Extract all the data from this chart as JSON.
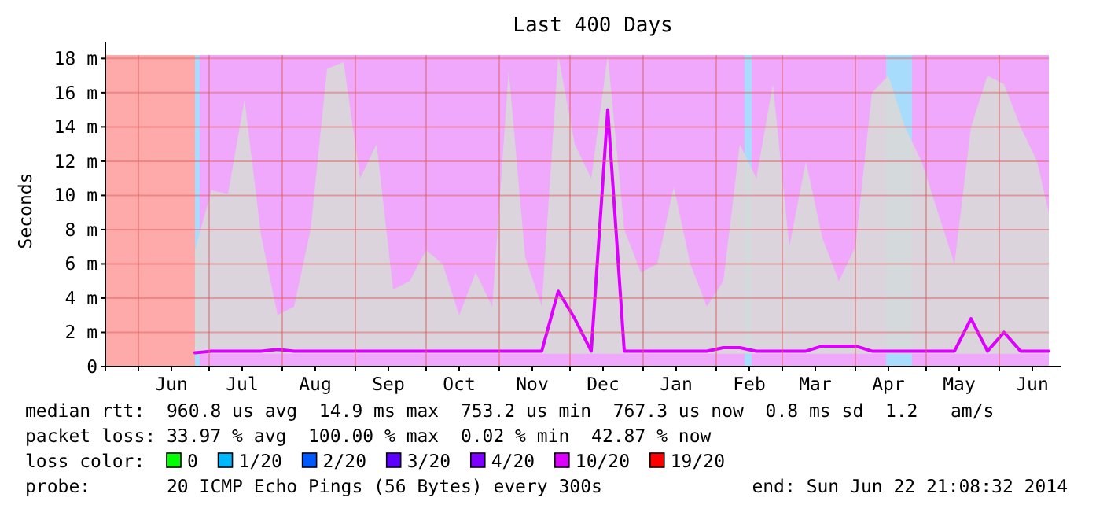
{
  "chart_data": {
    "type": "line",
    "title": "Last 400 Days",
    "ylabel": "Seconds",
    "legend": "bottom",
    "legend_title": "loss color:",
    "grid": true,
    "xlim": [
      "2013-05-18",
      "2014-06-22"
    ],
    "xticks": [
      {
        "value": "2013-06-01",
        "label": null
      },
      {
        "value": "2013-06-15",
        "label": "Jun"
      },
      {
        "value": "2013-07-01",
        "label": null
      },
      {
        "value": "2013-07-15",
        "label": "Jul"
      },
      {
        "value": "2013-08-01",
        "label": null
      },
      {
        "value": "2013-08-15",
        "label": "Aug"
      },
      {
        "value": "2013-09-01",
        "label": null
      },
      {
        "value": "2013-09-15",
        "label": "Sep"
      },
      {
        "value": "2013-10-01",
        "label": null
      },
      {
        "value": "2013-10-15",
        "label": "Oct"
      },
      {
        "value": "2013-11-01",
        "label": null
      },
      {
        "value": "2013-11-15",
        "label": "Nov"
      },
      {
        "value": "2013-12-01",
        "label": null
      },
      {
        "value": "2013-12-15",
        "label": "Dec"
      },
      {
        "value": "2014-01-01",
        "label": null
      },
      {
        "value": "2014-01-15",
        "label": "Jan"
      },
      {
        "value": "2014-02-01",
        "label": null
      },
      {
        "value": "2014-02-15",
        "label": "Feb"
      },
      {
        "value": "2014-03-01",
        "label": null
      },
      {
        "value": "2014-03-15",
        "label": "Mar"
      },
      {
        "value": "2014-04-01",
        "label": null
      },
      {
        "value": "2014-04-15",
        "label": "Apr"
      },
      {
        "value": "2014-05-01",
        "label": null
      },
      {
        "value": "2014-05-15",
        "label": "May"
      },
      {
        "value": "2014-06-01",
        "label": null
      },
      {
        "value": "2014-06-15",
        "label": "Jun"
      }
    ],
    "ylim": [
      0,
      18.2
    ],
    "yticks": [
      0,
      {
        "value": 2,
        "label": "2 m"
      },
      {
        "value": 4,
        "label": "4 m"
      },
      {
        "value": 6,
        "label": "6 m"
      },
      {
        "value": 8,
        "label": "8 m"
      },
      {
        "value": 10,
        "label": "10 m"
      },
      {
        "value": 12,
        "label": "12 m"
      },
      {
        "value": 14,
        "label": "14 m"
      },
      {
        "value": 16,
        "label": "16 m"
      },
      {
        "value": 18,
        "label": "18 m"
      }
    ],
    "bands": [
      {
        "axis": "x",
        "from": "2013-05-18",
        "to": "2013-06-25",
        "color": "#ffaaaa"
      },
      {
        "axis": "x",
        "from": "2013-06-25",
        "to": "2014-06-22",
        "color": "#f0a8fc"
      },
      {
        "axis": "x",
        "from": "2013-06-25",
        "to": "2013-06-27",
        "color": "#a8dcfc"
      },
      {
        "axis": "x",
        "from": "2014-02-13",
        "to": "2014-02-16",
        "color": "#a8dcfc"
      },
      {
        "axis": "x",
        "from": "2014-04-14",
        "to": "2014-04-25",
        "color": "#a8dcfc"
      }
    ],
    "x": [
      "2013-06-25",
      "2013-07-02",
      "2013-07-09",
      "2013-07-16",
      "2013-07-23",
      "2013-07-30",
      "2013-08-06",
      "2013-08-13",
      "2013-08-20",
      "2013-08-27",
      "2013-09-03",
      "2013-09-10",
      "2013-09-17",
      "2013-09-24",
      "2013-10-01",
      "2013-10-08",
      "2013-10-15",
      "2013-10-22",
      "2013-10-29",
      "2013-11-05",
      "2013-11-12",
      "2013-11-19",
      "2013-11-26",
      "2013-12-03",
      "2013-12-10",
      "2013-12-17",
      "2013-12-24",
      "2013-12-31",
      "2014-01-07",
      "2014-01-14",
      "2014-01-21",
      "2014-01-28",
      "2014-02-04",
      "2014-02-11",
      "2014-02-18",
      "2014-02-25",
      "2014-03-04",
      "2014-03-11",
      "2014-03-18",
      "2014-03-25",
      "2014-04-01",
      "2014-04-08",
      "2014-04-15",
      "2014-04-22",
      "2014-04-29",
      "2014-05-06",
      "2014-05-13",
      "2014-05-20",
      "2014-05-27",
      "2014-06-03",
      "2014-06-10",
      "2014-06-17",
      "2014-06-22"
    ],
    "series": [
      {
        "name": "0",
        "color": "#00ff00",
        "values": [
          null,
          null,
          null,
          null,
          null,
          null,
          null,
          null,
          null,
          null,
          null,
          null,
          null,
          null,
          null,
          null,
          null,
          null,
          null,
          null,
          null,
          null,
          null,
          null,
          null,
          null,
          null,
          null,
          null,
          null,
          null,
          null,
          null,
          null,
          null,
          null,
          null,
          null,
          null,
          null,
          null,
          null,
          null,
          null,
          null,
          null,
          null,
          null,
          null,
          null,
          null,
          null,
          null
        ]
      },
      {
        "name": "1/20",
        "color": "#00b8ff",
        "values": [
          null,
          null,
          null,
          null,
          null,
          null,
          null,
          null,
          null,
          null,
          null,
          null,
          null,
          null,
          null,
          null,
          null,
          null,
          null,
          null,
          null,
          null,
          null,
          null,
          null,
          null,
          null,
          null,
          null,
          null,
          null,
          null,
          null,
          null,
          null,
          null,
          null,
          null,
          null,
          null,
          null,
          null,
          null,
          null,
          null,
          null,
          null,
          null,
          null,
          null,
          null,
          null,
          null
        ]
      },
      {
        "name": "2/20",
        "color": "#0059ff",
        "values": [
          null,
          null,
          null,
          null,
          null,
          null,
          null,
          null,
          null,
          null,
          null,
          null,
          null,
          null,
          null,
          null,
          null,
          null,
          null,
          null,
          null,
          null,
          null,
          null,
          null,
          null,
          null,
          null,
          null,
          null,
          null,
          null,
          null,
          null,
          null,
          null,
          null,
          null,
          null,
          null,
          null,
          null,
          null,
          null,
          null,
          null,
          null,
          null,
          null,
          null,
          null,
          null,
          null
        ]
      },
      {
        "name": "3/20",
        "color": "#5e00ff",
        "values": [
          null,
          null,
          null,
          null,
          null,
          null,
          null,
          null,
          null,
          null,
          null,
          null,
          null,
          null,
          null,
          null,
          null,
          null,
          null,
          null,
          null,
          null,
          null,
          null,
          null,
          null,
          null,
          null,
          null,
          null,
          null,
          null,
          null,
          null,
          null,
          null,
          null,
          null,
          null,
          null,
          null,
          null,
          null,
          null,
          null,
          null,
          null,
          null,
          null,
          null,
          null,
          null,
          null
        ]
      },
      {
        "name": "4/20",
        "color": "#7e00ff",
        "values": [
          null,
          null,
          null,
          null,
          null,
          null,
          null,
          null,
          null,
          null,
          null,
          null,
          null,
          null,
          null,
          null,
          null,
          null,
          null,
          null,
          null,
          null,
          null,
          null,
          null,
          null,
          null,
          null,
          null,
          null,
          null,
          null,
          null,
          null,
          null,
          null,
          null,
          null,
          null,
          null,
          null,
          null,
          null,
          null,
          null,
          null,
          null,
          null,
          null,
          null,
          null,
          null,
          null
        ]
      },
      {
        "name": "10/20",
        "color": "#dd00ff",
        "values": [
          0.8,
          0.9,
          0.9,
          0.9,
          0.9,
          1.0,
          0.9,
          0.9,
          0.9,
          0.9,
          0.9,
          0.9,
          0.9,
          0.9,
          0.9,
          0.9,
          0.9,
          0.9,
          0.9,
          0.9,
          0.9,
          0.9,
          4.4,
          2.8,
          0.9,
          15,
          0.9,
          0.9,
          0.9,
          0.9,
          0.9,
          0.9,
          1.1,
          1.1,
          0.9,
          0.9,
          0.9,
          0.9,
          1.2,
          1.2,
          1.2,
          0.9,
          0.9,
          0.9,
          0.9,
          0.9,
          0.9,
          2.8,
          0.9,
          2.0,
          0.9,
          0.9,
          0.9
        ],
        "lower": [
          0.7,
          0.75,
          0.75,
          0.75,
          0.75,
          0.75,
          0.75,
          0.75,
          0.75,
          0.75,
          0.75,
          0.75,
          0.75,
          0.75,
          0.75,
          0.75,
          0.75,
          0.75,
          0.75,
          0.75,
          0.75,
          0.75,
          0.75,
          0.75,
          0.75,
          0.75,
          0.75,
          0.75,
          0.75,
          0.75,
          0.75,
          0.75,
          0.75,
          0.75,
          0.75,
          0.75,
          0.75,
          0.75,
          0.75,
          0.75,
          0.75,
          0.75,
          0.75,
          0.75,
          0.75,
          0.75,
          0.75,
          0.75,
          0.75,
          0.75,
          0.75,
          0.75,
          0.75
        ],
        "upper": [
          6.8,
          10.3,
          10.1,
          15.6,
          7.7,
          3.0,
          3.5,
          8.0,
          17.4,
          17.8,
          11,
          13,
          4.5,
          5.0,
          6.8,
          6.0,
          3.0,
          5.5,
          3.5,
          17.3,
          6.4,
          3.5,
          18.2,
          13,
          11,
          18.2,
          8.0,
          5.5,
          6.0,
          10.5,
          6.0,
          3.5,
          5.0,
          13,
          11,
          16.5,
          7.0,
          12,
          7.5,
          5.0,
          7.0,
          16,
          17,
          14,
          12,
          9.0,
          6.0,
          14,
          17,
          16.5,
          14,
          12,
          9.0
        ]
      },
      {
        "name": "19/20",
        "color": "#ff0000",
        "values": [
          null,
          null,
          null,
          null,
          null,
          null,
          null,
          null,
          null,
          null,
          null,
          null,
          null,
          null,
          null,
          null,
          null,
          null,
          null,
          null,
          null,
          null,
          null,
          null,
          null,
          null,
          null,
          null,
          null,
          null,
          null,
          null,
          null,
          null,
          null,
          null,
          null,
          null,
          null,
          null,
          null,
          null,
          null,
          null,
          null,
          null,
          null,
          null,
          null,
          null,
          null,
          null,
          null
        ]
      }
    ],
    "annotations": [
      "median rtt:  960.8 us avg  14.9 ms max  753.2 us min  767.3 us now  0.8 ms sd  1.2   am/s",
      "packet loss: 33.97 % avg  100.00 % max  0.02 % min  42.87 % now",
      "probe:       20 ICMP Echo Pings (56 Bytes) every 300s",
      "end: Sun Jun 22 21:08:32 2014"
    ]
  }
}
